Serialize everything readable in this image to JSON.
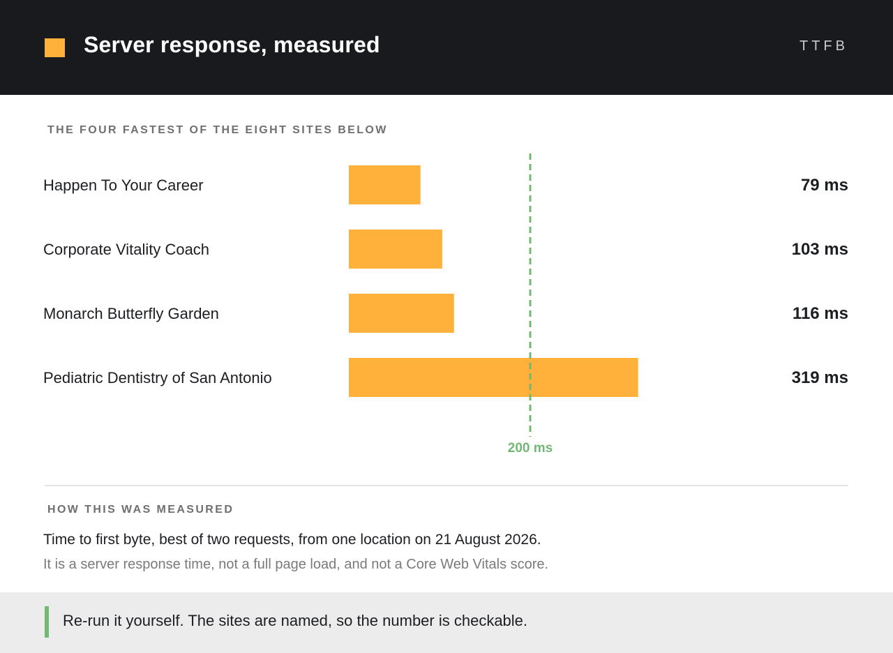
{
  "header": {
    "title": "Server response, measured",
    "tag": "TTFB",
    "accent_color": "#ffb13b"
  },
  "chart_section": {
    "label": "THE FOUR FASTEST OF THE EIGHT SITES BELOW"
  },
  "chart_data": {
    "type": "bar",
    "orientation": "horizontal",
    "categories": [
      "Happen To Your Career",
      "Corporate Vitality Coach",
      "Monarch Butterfly Garden",
      "Pediatric Dentistry of San Antonio"
    ],
    "values": [
      79,
      103,
      116,
      319
    ],
    "value_labels": [
      "79 ms",
      "103 ms",
      "116 ms",
      "319 ms"
    ],
    "bar_color": "#ffb13b",
    "reference_line": {
      "value": 200,
      "label": "200 ms",
      "color": "#73b775",
      "style": "dashed"
    },
    "xlim": [
      0,
      400
    ],
    "grid": false
  },
  "method": {
    "label": "HOW THIS WAS MEASURED",
    "main": "Time to first byte, best of two requests, from one location on 21 August 2026.",
    "sub": "It is a server response time, not a full page load, and not a Core Web Vitals score."
  },
  "footer": {
    "text": "Re-run it yourself. The sites are named, so the number is checkable.",
    "accent_color": "#73b775"
  }
}
